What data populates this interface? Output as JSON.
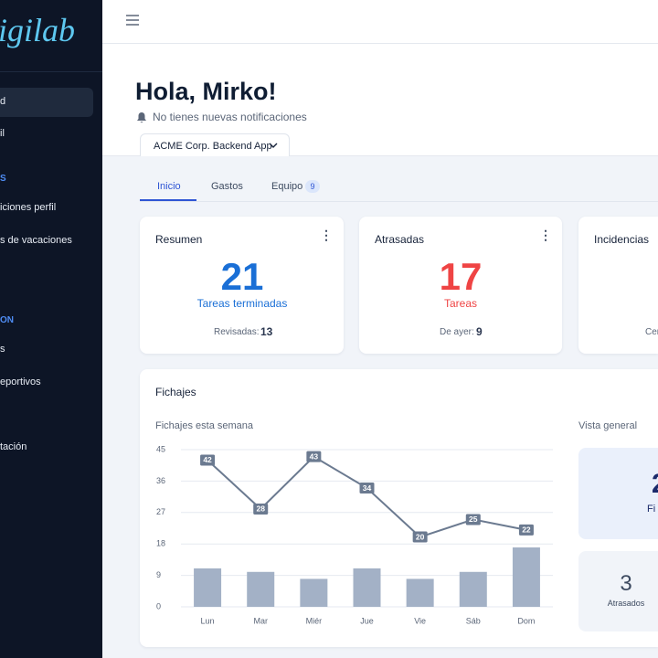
{
  "sidebar": {
    "logo": "igilab",
    "items": [
      "d",
      "il",
      "iciones perfil",
      "s de vacaciones",
      "s",
      "eportivos",
      "tación"
    ],
    "sections": [
      "S",
      "ON"
    ]
  },
  "header": {
    "greeting": "Hola, Mirko!",
    "notifications": "No tienes nuevas notificaciones",
    "project": "ACME Corp. Backend App"
  },
  "tabs": [
    {
      "label": "Inicio"
    },
    {
      "label": "Gastos"
    },
    {
      "label": "Equipo",
      "badge": 9
    }
  ],
  "cards": [
    {
      "title": "Resumen",
      "value": 21,
      "caption": "Tareas terminadas",
      "footer_label": "Revisadas:",
      "footer_value": 13
    },
    {
      "title": "Atrasadas",
      "value": 17,
      "caption": "Tareas",
      "footer_label": "De ayer:",
      "footer_value": 9
    },
    {
      "title": "Incidencias",
      "footer_label": "Cer"
    }
  ],
  "fichajes": {
    "title": "Fichajes",
    "overview": {
      "title": "Vista general",
      "items": [
        {
          "value": 2,
          "label": "Fi"
        },
        {
          "value": 3,
          "label": "Atrasados"
        }
      ]
    }
  },
  "chart_data": {
    "type": "combo",
    "title": "Fichajes esta semana",
    "categories": [
      "Lun",
      "Mar",
      "Miér",
      "Jue",
      "Vie",
      "Sáb",
      "Dom"
    ],
    "series": [
      {
        "type": "bar",
        "color": "#a3b1c6",
        "values": [
          11,
          10,
          8,
          11,
          8,
          10,
          17
        ]
      },
      {
        "type": "line",
        "color": "#6b7a90",
        "values": [
          42,
          28,
          43,
          34,
          20,
          25,
          22
        ]
      }
    ],
    "ylim": [
      0,
      45
    ],
    "yticks": [
      0,
      9,
      18,
      27,
      36,
      45
    ],
    "grid": true
  }
}
